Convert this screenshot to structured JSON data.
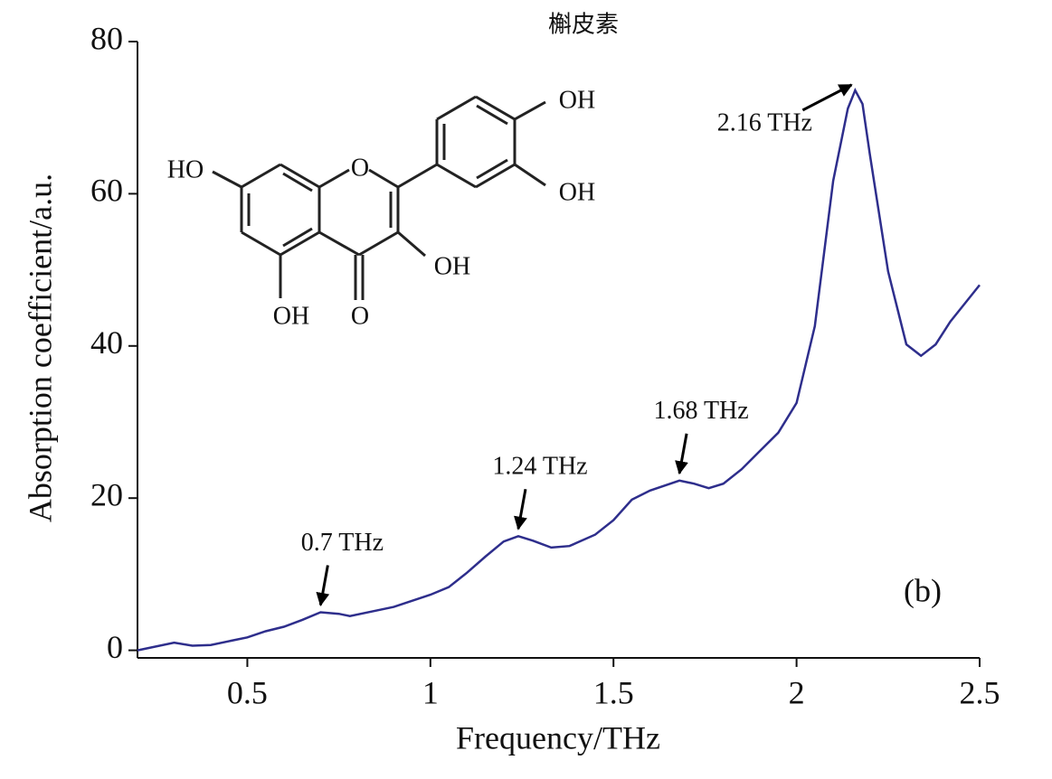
{
  "chart_data": {
    "type": "line",
    "title": "槲皮素",
    "panel_label": "(b)",
    "x_label": "Frequency/THz",
    "y_label": "Absorption coefficient/a.u.",
    "xlim": [
      0.2,
      2.5
    ],
    "ylim": [
      -1,
      80
    ],
    "xticks": [
      0.5,
      1,
      1.5,
      2,
      2.5
    ],
    "yticks": [
      0,
      20,
      40,
      60,
      80
    ],
    "color": "#2e2e8c",
    "x": [
      0.2,
      0.3,
      0.35,
      0.4,
      0.5,
      0.55,
      0.6,
      0.65,
      0.7,
      0.75,
      0.78,
      0.85,
      0.9,
      1.0,
      1.05,
      1.1,
      1.15,
      1.2,
      1.24,
      1.28,
      1.33,
      1.38,
      1.45,
      1.5,
      1.55,
      1.6,
      1.68,
      1.72,
      1.76,
      1.8,
      1.85,
      1.9,
      1.95,
      2.0,
      2.05,
      2.1,
      2.14,
      2.16,
      2.18,
      2.2,
      2.25,
      2.3,
      2.34,
      2.38,
      2.42,
      2.46,
      2.5
    ],
    "values": [
      0,
      1,
      0.6,
      0.7,
      1.7,
      2.5,
      3.1,
      4,
      5,
      4.8,
      4.5,
      5.2,
      5.7,
      7.3,
      8.3,
      10.2,
      12.3,
      14.3,
      15,
      14.4,
      13.5,
      13.7,
      15.2,
      17.1,
      19.8,
      21,
      22.3,
      21.9,
      21.3,
      21.9,
      23.8,
      26.2,
      28.6,
      32.5,
      42.6,
      61.7,
      71.2,
      73.6,
      71.8,
      65.2,
      49.8,
      40.2,
      38.7,
      40.2,
      43.2,
      45.6,
      48
    ],
    "annotations": [
      {
        "text": "0.7 THz",
        "x": 0.7,
        "y": 5
      },
      {
        "text": "1.24 THz",
        "x": 1.24,
        "y": 15
      },
      {
        "text": "1.68 THz",
        "x": 1.68,
        "y": 22.3
      },
      {
        "text": "2.16 THz",
        "x": 2.16,
        "y": 73.6
      }
    ],
    "structure_labels": [
      "HO",
      "OH",
      "OH",
      "OH",
      "OH",
      "O",
      "O"
    ]
  }
}
